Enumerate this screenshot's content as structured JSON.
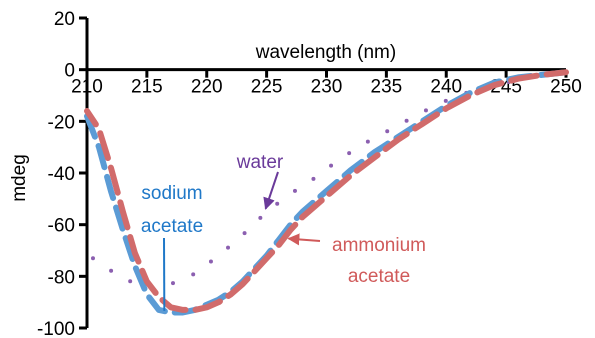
{
  "chart_data": {
    "type": "line",
    "xlabel": "wavelength (nm)",
    "ylabel": "mdeg",
    "xlim": [
      210,
      250
    ],
    "ylim": [
      -100,
      20
    ],
    "xticks": [
      210,
      215,
      220,
      225,
      230,
      235,
      240,
      245,
      250
    ],
    "yticks": [
      20,
      0,
      -20,
      -40,
      -60,
      -80,
      -100
    ],
    "grid": false,
    "legend": "none",
    "series": [
      {
        "name": "water",
        "style": "dotted",
        "color": "#8B5FB0",
        "x": [
          210.5,
          213,
          215,
          217,
          219,
          221,
          223,
          225,
          227,
          229,
          231,
          233,
          235,
          237,
          239,
          241,
          243,
          245,
          247,
          249
        ],
        "y": [
          -73,
          -81,
          -84,
          -83,
          -79,
          -72,
          -64,
          -55,
          -48,
          -42,
          -35,
          -29,
          -24,
          -19,
          -14,
          -10,
          -7,
          -5,
          -3,
          -1.5
        ]
      },
      {
        "name": "sodium acetate",
        "style": "dashed",
        "color": "#5B9BD5",
        "x": [
          210,
          211,
          212,
          213,
          214,
          215,
          216,
          217,
          218,
          219,
          220,
          221,
          222,
          223,
          224,
          225,
          226,
          227,
          228,
          229,
          230,
          232,
          234,
          236,
          238,
          240,
          242,
          244,
          246,
          248,
          250
        ],
        "y": [
          -18,
          -30,
          -47,
          -62,
          -76,
          -87,
          -93,
          -94,
          -94,
          -93,
          -91,
          -89,
          -86,
          -82,
          -77,
          -72,
          -66,
          -60,
          -55,
          -51,
          -47,
          -39,
          -32,
          -26,
          -20,
          -14,
          -9,
          -5,
          -3,
          -2,
          -1
        ]
      },
      {
        "name": "ammonium acetate",
        "style": "dashed",
        "color": "#D16B6B",
        "x": [
          210,
          211,
          212,
          213,
          214,
          215,
          216,
          217,
          218,
          219,
          220,
          221,
          222,
          223,
          224,
          225,
          226,
          227,
          228,
          229,
          230,
          232,
          234,
          236,
          238,
          240,
          242,
          244,
          246,
          248,
          250
        ],
        "y": [
          -16,
          -23,
          -38,
          -55,
          -71,
          -82,
          -88,
          -92,
          -93,
          -93,
          -92,
          -90,
          -87,
          -83,
          -78,
          -73,
          -68,
          -62,
          -57,
          -53,
          -49,
          -41,
          -34,
          -27,
          -21,
          -15,
          -10,
          -6,
          -3.5,
          -2,
          -1
        ]
      }
    ],
    "annotations": [
      {
        "text": "water",
        "color": "#6A3A9A",
        "arrow_to": [
          225,
          -55
        ]
      },
      {
        "text": "sodium acetate",
        "color": "#1F78C8",
        "arrow_to": [
          216.5,
          -93
        ]
      },
      {
        "text": "ammonium acetate",
        "color": "#D05A5A",
        "arrow_to": [
          226.5,
          -65
        ]
      }
    ]
  }
}
